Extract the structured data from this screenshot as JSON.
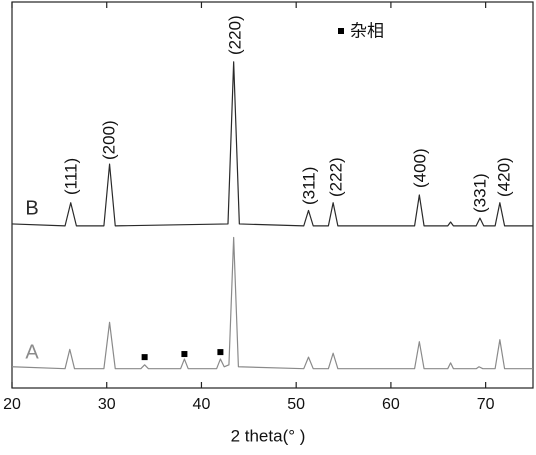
{
  "chart_data": {
    "type": "line",
    "x_label": "2 theta(° )",
    "xlim": [
      20,
      75
    ],
    "xticks": [
      20,
      30,
      40,
      50,
      60,
      70
    ],
    "ylim": [
      0,
      100
    ],
    "series": [
      {
        "name": "B",
        "color": "#2a2a2a",
        "x": [
          20,
          25.6,
          26.2,
          26.8,
          29.7,
          30.3,
          30.9,
          42.8,
          43.4,
          44.0,
          50.8,
          51.3,
          51.8,
          53.4,
          53.9,
          54.4,
          62.5,
          63.0,
          63.5,
          66.0,
          66.3,
          66.6,
          69.0,
          69.4,
          69.8,
          71.0,
          71.5,
          72.0,
          75
        ],
        "values": [
          42.5,
          42,
          48,
          42,
          42,
          58,
          42,
          42.5,
          84.5,
          42.5,
          42,
          46,
          42,
          42,
          48,
          42,
          42,
          50,
          42,
          42,
          43,
          42,
          42,
          44,
          42,
          42,
          48,
          42,
          42
        ]
      },
      {
        "name": "A",
        "color": "#8a8a8a",
        "x": [
          20,
          25.6,
          26.1,
          26.6,
          29.7,
          30.3,
          30.9,
          33.6,
          34.0,
          34.4,
          37.8,
          38.2,
          38.6,
          41.6,
          42.0,
          42.4,
          42.9,
          43.4,
          43.9,
          50.8,
          51.3,
          51.8,
          53.4,
          53.9,
          54.4,
          62.5,
          63.0,
          63.5,
          66.0,
          66.3,
          66.6,
          69.0,
          69.3,
          69.7,
          71.0,
          71.5,
          72.0,
          75
        ],
        "values": [
          5.5,
          5,
          10,
          5,
          5,
          17,
          5,
          5,
          6,
          5,
          5,
          7.5,
          5,
          5,
          7.5,
          5.5,
          6,
          39,
          5.5,
          5,
          8,
          5,
          5,
          9,
          5,
          5,
          12,
          5,
          5,
          6.5,
          5,
          5,
          5.5,
          5,
          5,
          12.5,
          5,
          5
        ]
      },
      {
        "name": "杂相",
        "type": "scatter",
        "marker": "square",
        "color": "#000000",
        "x": [
          34.0,
          38.2,
          42.0
        ],
        "values": [
          8,
          8.8,
          9.3
        ]
      }
    ],
    "annotations": [
      "(111)",
      "(200)",
      "(220)",
      "(311)",
      "(222)",
      "(400)",
      "(331)",
      "(420)"
    ]
  }
}
